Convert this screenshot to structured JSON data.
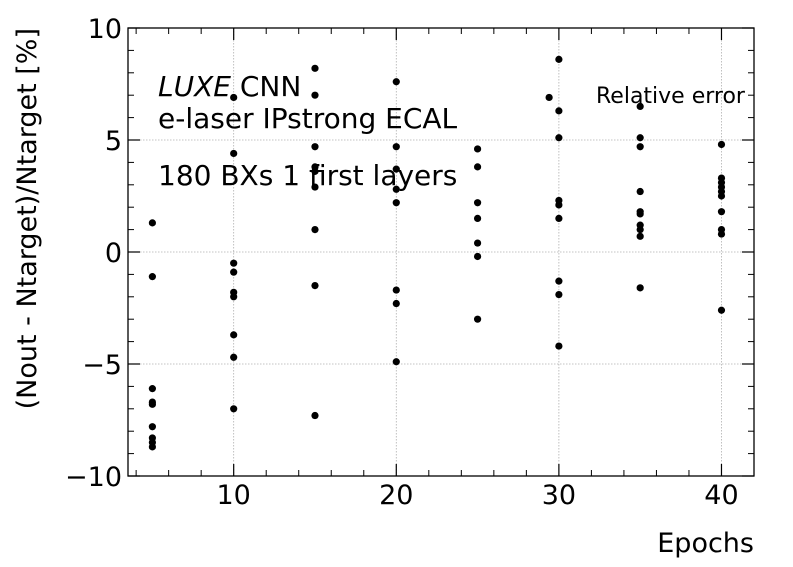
{
  "chart_data": {
    "type": "scatter",
    "title": "",
    "xlabel": "Epochs",
    "ylabel": "(Nout - Ntarget)/Ntarget [%]",
    "xlim": [
      3.5,
      42
    ],
    "ylim": [
      -10,
      10
    ],
    "xticks": [
      10,
      20,
      30,
      40
    ],
    "yticks": [
      -10,
      -5,
      0,
      5,
      10
    ],
    "ytick_labels": [
      "−10",
      "−5",
      "0",
      "5",
      "10"
    ],
    "grid": true,
    "legend": {
      "label": "Relative error",
      "placement": "top-right"
    },
    "annotations": {
      "line1_italic": "LUXE",
      "line1_rest": " CNN",
      "line2": "e-laser IPstrong ECAL",
      "line3": "180 BXs 1 first layers"
    },
    "marker_color": "#000000",
    "series": [
      {
        "name": "Relative error",
        "points": [
          [
            5,
            1.3
          ],
          [
            5,
            -1.1
          ],
          [
            5,
            -6.1
          ],
          [
            5,
            -6.7
          ],
          [
            5,
            -6.8
          ],
          [
            5,
            -7.8
          ],
          [
            5,
            -8.3
          ],
          [
            5,
            -8.5
          ],
          [
            5,
            -8.7
          ],
          [
            10,
            6.9
          ],
          [
            10,
            4.4
          ],
          [
            10,
            -0.5
          ],
          [
            10,
            -0.9
          ],
          [
            10,
            -1.8
          ],
          [
            10,
            -2.0
          ],
          [
            10,
            -3.7
          ],
          [
            10,
            -4.7
          ],
          [
            10,
            -7.0
          ],
          [
            15,
            8.2
          ],
          [
            15,
            7.0
          ],
          [
            15,
            4.7
          ],
          [
            15,
            3.8
          ],
          [
            15,
            3.6
          ],
          [
            15,
            2.9
          ],
          [
            15,
            1.0
          ],
          [
            15,
            -1.5
          ],
          [
            15,
            -7.3
          ],
          [
            20,
            7.6
          ],
          [
            20,
            4.7
          ],
          [
            20,
            3.7
          ],
          [
            20,
            2.8
          ],
          [
            20,
            2.2
          ],
          [
            20,
            -1.7
          ],
          [
            20,
            -2.3
          ],
          [
            20,
            -4.9
          ],
          [
            25,
            4.6
          ],
          [
            25,
            3.8
          ],
          [
            25,
            2.2
          ],
          [
            25,
            1.5
          ],
          [
            25,
            0.4
          ],
          [
            25,
            -0.2
          ],
          [
            25,
            -3.0
          ],
          [
            29.4,
            6.9
          ],
          [
            30,
            8.6
          ],
          [
            30,
            6.3
          ],
          [
            30,
            5.1
          ],
          [
            30,
            2.3
          ],
          [
            30,
            2.1
          ],
          [
            30,
            1.5
          ],
          [
            30,
            -1.3
          ],
          [
            30,
            -1.9
          ],
          [
            30,
            -4.2
          ],
          [
            35,
            6.5
          ],
          [
            35,
            5.1
          ],
          [
            35,
            4.7
          ],
          [
            35,
            2.7
          ],
          [
            35,
            1.8
          ],
          [
            35,
            1.7
          ],
          [
            35,
            1.2
          ],
          [
            35,
            1.0
          ],
          [
            35,
            0.7
          ],
          [
            35,
            -1.6
          ],
          [
            40,
            4.8
          ],
          [
            40,
            3.3
          ],
          [
            40,
            3.1
          ],
          [
            40,
            2.9
          ],
          [
            40,
            2.7
          ],
          [
            40,
            2.5
          ],
          [
            40,
            1.8
          ],
          [
            40,
            1.0
          ],
          [
            40,
            0.8
          ],
          [
            40,
            -2.6
          ]
        ]
      }
    ]
  }
}
